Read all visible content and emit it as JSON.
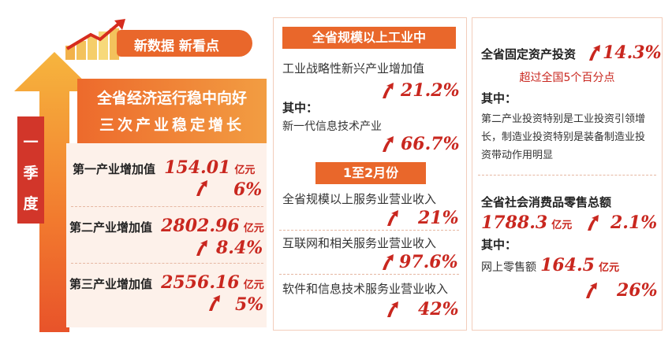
{
  "header": {
    "badge": "新数据 新看点"
  },
  "left": {
    "season": [
      "一",
      "季",
      "度"
    ],
    "title_line1": "全省经济运行稳中向好",
    "title_line2": "三次产业稳定增长",
    "items": [
      {
        "label": "第一产业增加值",
        "value": "154.01",
        "unit": "亿元",
        "growth": "6%"
      },
      {
        "label": "第二产业增加值",
        "value": "2802.96",
        "unit": "亿元",
        "growth": "8.4%"
      },
      {
        "label": "第三产业增加值",
        "value": "2556.16",
        "unit": "亿元",
        "growth": "5%"
      }
    ]
  },
  "middle": {
    "header1": "全省规模以上工业中",
    "item1_label": "工业战略性新兴产业增加值",
    "item1_growth": "21.2%",
    "item1_sub": "其中：",
    "item1b_label": "新一代信息技术产业",
    "item1b_growth": "66.7%",
    "header2": "1至2月份",
    "items2": [
      {
        "label": "全省规模以上服务业营业收入",
        "growth": "21%"
      },
      {
        "label": "互联网和相关服务业营业收入",
        "growth": "97.6%"
      },
      {
        "label": "软件和信息技术服务业营业收入",
        "growth": "42%"
      }
    ]
  },
  "right": {
    "fai_label": "全省固定资产投资",
    "fai_growth": "14.3%",
    "fai_note": "超过全国5个百分点",
    "sub1": "其中：",
    "desc": "第二产业投资特别是工业投资引领增长，制造业投资特别是装备制造业投资带动作用明显",
    "retail_label": "全省社会消费品零售总额",
    "retail_value": "1788.3",
    "retail_unit": "亿元",
    "retail_growth": "2.1%",
    "sub2": "其中：",
    "online_label": "网上零售额",
    "online_value": "164.5",
    "online_unit": "亿元",
    "online_growth": "26%"
  },
  "colors": {
    "accent": "#c9271f",
    "orange": "#f08a3c",
    "panel": "#fdf1ea"
  }
}
